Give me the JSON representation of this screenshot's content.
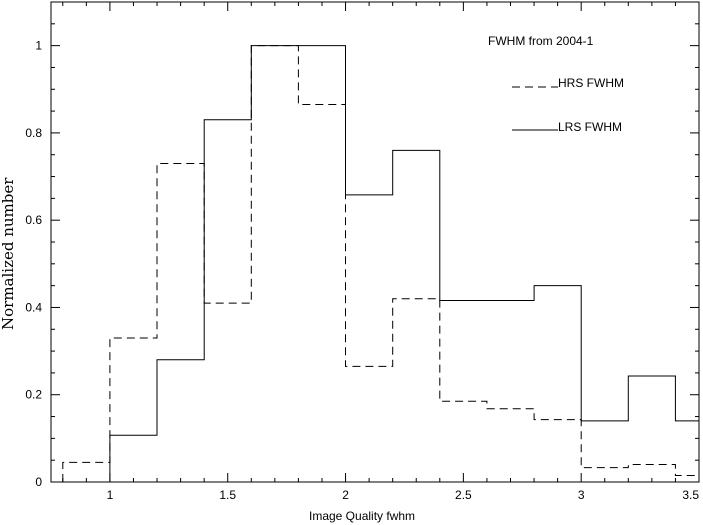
{
  "chart_data": {
    "type": "line",
    "subtype": "step-histogram",
    "annotation": "FWHM from 2004-1",
    "xlabel": "Image Quality fwhm",
    "ylabel": "Normalized number",
    "xlim": [
      0.75,
      3.5
    ],
    "ylim": [
      0,
      1.1
    ],
    "x_ticks": [
      1,
      1.5,
      2,
      2.5,
      3,
      3.5
    ],
    "x_tick_labels": [
      "1",
      "1.5",
      "2",
      "2.5",
      "3",
      "3.5"
    ],
    "y_ticks": [
      0,
      0.2,
      0.4,
      0.6,
      0.8,
      1
    ],
    "y_tick_labels": [
      "0",
      "0.2",
      "0.4",
      "0.6",
      "0.8",
      "1"
    ],
    "bin_edges": [
      0.8,
      1.0,
      1.2,
      1.4,
      1.6,
      1.8,
      2.0,
      2.2,
      2.4,
      2.6,
      2.8,
      3.0,
      3.2,
      3.4,
      3.5
    ],
    "series": [
      {
        "name": "HRS FWHM",
        "style": "dashed",
        "values": [
          0.045,
          0.33,
          0.73,
          0.41,
          1.0,
          0.865,
          0.265,
          0.42,
          0.185,
          0.168,
          0.143,
          0.033,
          0.04,
          0.015
        ]
      },
      {
        "name": "LRS FWHM",
        "style": "solid",
        "values": [
          null,
          0.107,
          0.28,
          0.83,
          1.0,
          1.0,
          0.658,
          0.76,
          0.416,
          0.416,
          0.45,
          0.14,
          0.243,
          0.14
        ]
      }
    ],
    "grid": false,
    "legend_position": "top-right"
  }
}
